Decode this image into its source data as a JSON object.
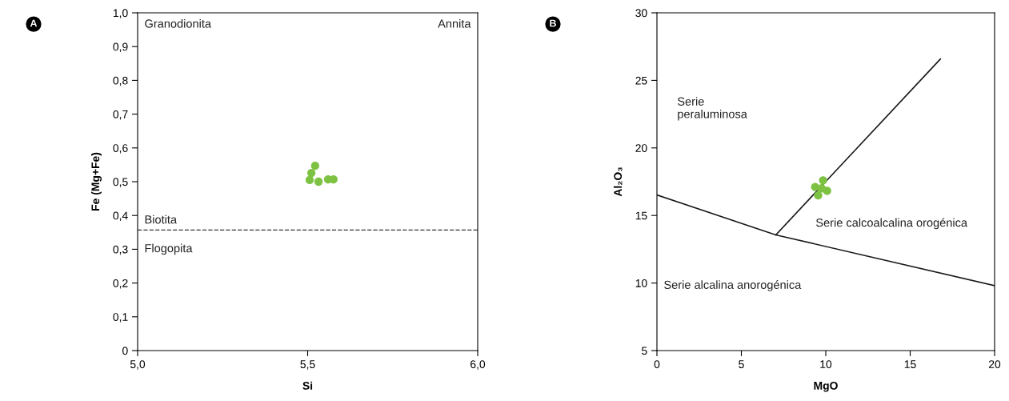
{
  "chart_data": [
    {
      "type": "scatter",
      "xlabel": "Si",
      "ylabel": "Fe (Mg+Fe)",
      "series": [
        {
          "color": "#7dc242",
          "marker": "circle",
          "x": [
            5.506,
            5.511,
            5.522,
            5.532,
            5.56,
            5.576
          ],
          "values": [
            0.505,
            0.526,
            0.547,
            0.5,
            0.507,
            0.507
          ]
        }
      ],
      "xlim": [
        5.0,
        6.0
      ],
      "xticks": [
        {
          "value": 5.0,
          "label": "5,0"
        },
        {
          "value": 5.5,
          "label": "5,5"
        },
        {
          "value": 6.0,
          "label": "6,0"
        }
      ],
      "ylim": [
        0,
        1.0
      ],
      "yticks": [
        0,
        {
          "value": 0.1,
          "label": "0,1"
        },
        {
          "value": 0.2,
          "label": "0,2"
        },
        {
          "value": 0.3,
          "label": "0,3"
        },
        {
          "value": 0.4,
          "label": "0,4"
        },
        {
          "value": 0.5,
          "label": "0,5"
        },
        {
          "value": 0.6,
          "label": "0,6"
        },
        {
          "value": 0.7,
          "label": "0,7"
        },
        {
          "value": 0.8,
          "label": "0,8"
        },
        {
          "value": 0.9,
          "label": "0,9"
        },
        {
          "value": 1.0,
          "label": "1,0"
        }
      ],
      "ref_lines": [
        {
          "axis": "y",
          "value": 0.357,
          "color": "#333333",
          "line_style": "dashed"
        }
      ],
      "annotations": [
        "A",
        "Granodionita",
        "Annita",
        "Biotita",
        "Flogopita"
      ]
    },
    {
      "type": "scatter",
      "xlabel": "MgO",
      "ylabel": "Al₂O₃",
      "series": [
        {
          "color": "#7dc242",
          "marker": "circle",
          "x": [
            9.37,
            9.84,
            9.76,
            10.08,
            9.55
          ],
          "values": [
            17.11,
            17.6,
            17.01,
            16.82,
            16.48
          ]
        },
        {
          "type": "line",
          "color": "#1a1a1a",
          "x": [
            0,
            7.04,
            20
          ],
          "values": [
            16.52,
            13.56,
            9.81
          ]
        },
        {
          "type": "line",
          "color": "#1a1a1a",
          "x": [
            7.04,
            16.79
          ],
          "values": [
            13.56,
            26.58
          ]
        }
      ],
      "xlim": [
        0,
        20
      ],
      "xticks": [
        0,
        5,
        10,
        15,
        20
      ],
      "ylim": [
        5,
        30
      ],
      "yticks": [
        5,
        10,
        15,
        20,
        25,
        30
      ],
      "annotations": [
        "B",
        "Serie\nperaluminosa",
        "Serie calcoalcalina orogénica",
        "Serie alcalina anorogénica"
      ]
    }
  ]
}
